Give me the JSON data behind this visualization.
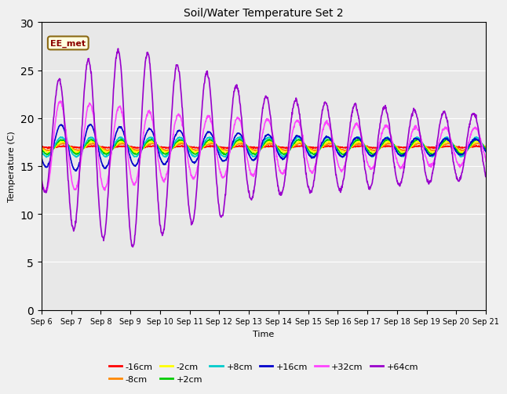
{
  "title": "Soil/Water Temperature Set 2",
  "xlabel": "Time",
  "ylabel": "Temperature (C)",
  "xlim": [
    0,
    15
  ],
  "ylim": [
    0,
    30
  ],
  "yticks": [
    0,
    5,
    10,
    15,
    20,
    25,
    30
  ],
  "xtick_labels": [
    "Sep 6",
    "Sep 7",
    "Sep 8",
    "Sep 9",
    "Sep 10",
    "Sep 11",
    "Sep 12",
    "Sep 13",
    "Sep 14",
    "Sep 15",
    "Sep 16",
    "Sep 17",
    "Sep 18",
    "Sep 19",
    "Sep 20",
    "Sep 21"
  ],
  "bg_color": "#e8e8e8",
  "fig_color": "#f0f0f0",
  "series_order": [
    "-16cm",
    "-8cm",
    "-2cm",
    "+2cm",
    "+8cm",
    "+16cm",
    "+32cm",
    "+64cm"
  ],
  "series_colors": {
    "-16cm": "#ff0000",
    "-8cm": "#ff8800",
    "-2cm": "#ffff00",
    "+2cm": "#00cc00",
    "+8cm": "#00cccc",
    "+16cm": "#0000cc",
    "+32cm": "#ff44ff",
    "+64cm": "#9900cc"
  },
  "lw": 1.2
}
